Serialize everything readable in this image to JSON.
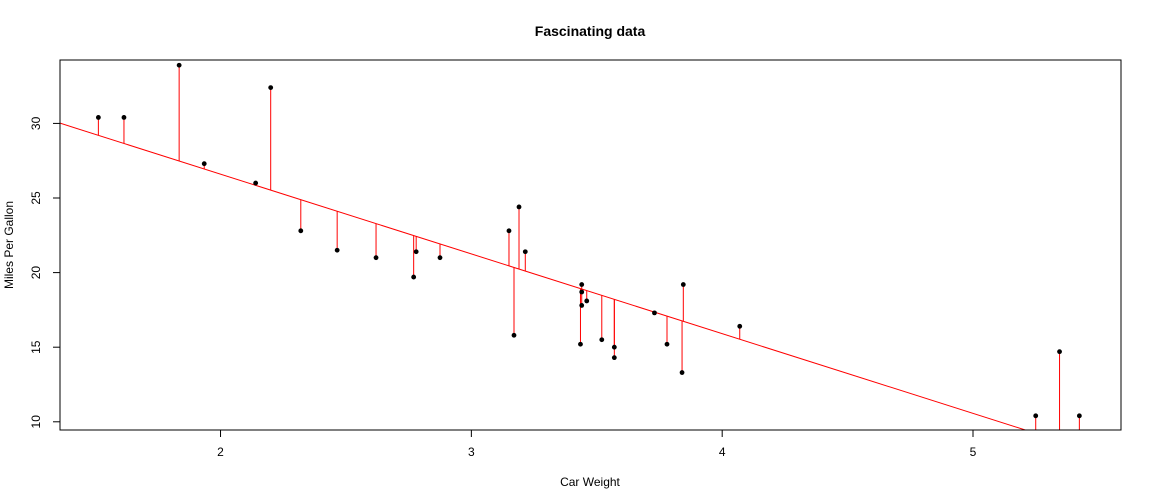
{
  "chart_data": {
    "type": "scatter",
    "title": "Fascinating data",
    "xlabel": "Car Weight",
    "ylabel": "Miles Per Gallon",
    "xlim": [
      1.36,
      5.59
    ],
    "ylim": [
      9.45,
      34.25
    ],
    "x_ticks": [
      2,
      3,
      4,
      5
    ],
    "y_ticks": [
      10,
      15,
      20,
      25,
      30
    ],
    "grid": false,
    "regression": {
      "intercept": 37.285,
      "slope": -5.344,
      "color": "#ff0000"
    },
    "residual_color": "#ff0000",
    "point_color": "#000000",
    "points": [
      {
        "x": 2.62,
        "y": 21.0
      },
      {
        "x": 2.875,
        "y": 21.0
      },
      {
        "x": 2.32,
        "y": 22.8
      },
      {
        "x": 3.215,
        "y": 21.4
      },
      {
        "x": 3.44,
        "y": 18.7
      },
      {
        "x": 3.46,
        "y": 18.1
      },
      {
        "x": 3.57,
        "y": 14.3
      },
      {
        "x": 3.19,
        "y": 24.4
      },
      {
        "x": 3.15,
        "y": 22.8
      },
      {
        "x": 3.44,
        "y": 19.2
      },
      {
        "x": 3.44,
        "y": 17.8
      },
      {
        "x": 4.07,
        "y": 16.4
      },
      {
        "x": 3.73,
        "y": 17.3
      },
      {
        "x": 3.78,
        "y": 15.2
      },
      {
        "x": 5.25,
        "y": 10.4
      },
      {
        "x": 5.424,
        "y": 10.4
      },
      {
        "x": 5.345,
        "y": 14.7
      },
      {
        "x": 2.2,
        "y": 32.4
      },
      {
        "x": 1.615,
        "y": 30.4
      },
      {
        "x": 1.835,
        "y": 33.9
      },
      {
        "x": 2.465,
        "y": 21.5
      },
      {
        "x": 3.52,
        "y": 15.5
      },
      {
        "x": 3.435,
        "y": 15.2
      },
      {
        "x": 3.84,
        "y": 13.3
      },
      {
        "x": 3.845,
        "y": 19.2
      },
      {
        "x": 1.935,
        "y": 27.3
      },
      {
        "x": 2.14,
        "y": 26.0
      },
      {
        "x": 1.513,
        "y": 30.4
      },
      {
        "x": 3.17,
        "y": 15.8
      },
      {
        "x": 2.77,
        "y": 19.7
      },
      {
        "x": 3.57,
        "y": 15.0
      },
      {
        "x": 2.78,
        "y": 21.4
      }
    ]
  }
}
